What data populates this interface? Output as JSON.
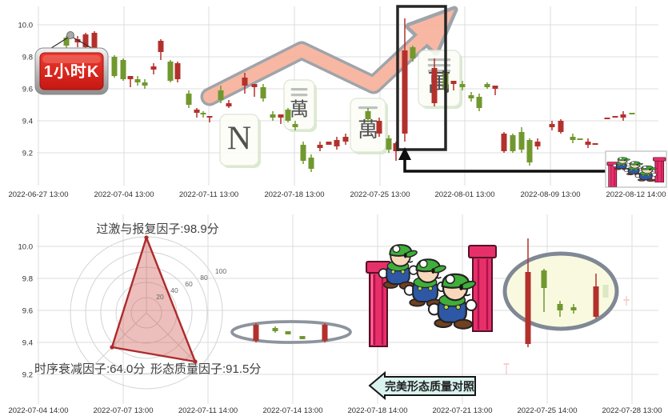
{
  "colors": {
    "candle_red": "#b3312c",
    "candle_green": "#71982e",
    "candle_faint_pink": "#f2b6b6",
    "candle_faint_green": "#bcd9a9",
    "grid": "#dcdcdc",
    "radar_stroke": "#ad2b2b",
    "radar_fill": "rgba(205,85,80,0.38)",
    "arrow_fill": "#f7b49e",
    "arrow_stroke": "#9aa0a6",
    "sign_red": "#d92020",
    "banner_fill": "#d9f3ee",
    "ellipse_large_fill": "#f9f9e0",
    "ellipse_stroke": "#7f8894",
    "box_stroke": "#262626",
    "tile_pink": "#e9a7ae",
    "tile_red": "#c2454e"
  },
  "chart_data": [
    {
      "type": "candlestick",
      "title": "1小时K",
      "y_axis": {
        "ticks": [
          "10.0",
          "9.8",
          "9.6",
          "9.4",
          "9.2"
        ],
        "range": [
          9.0,
          10.1
        ],
        "grid": true
      },
      "x_axis": {
        "ticks": [
          "2022-06-27 13:00",
          "2022-07-04 13:00",
          "2022-07-11 13:00",
          "2022-07-18 13:00",
          "2022-07-25 13:00",
          "2022-08-01 13:00",
          "2022-08-09 13:00",
          "2022-08-12 14:00"
        ]
      },
      "candles": [
        [
          83,
          "g",
          9.92,
          9.87,
          9.93,
          9.85
        ],
        [
          97,
          "r",
          9.91,
          9.89,
          9.93,
          9.86
        ],
        [
          107,
          "r",
          9.94,
          9.86,
          9.95,
          9.8
        ],
        [
          118,
          "r",
          9.95,
          9.83,
          9.96,
          9.81
        ],
        [
          143,
          "g",
          9.8,
          9.68,
          9.81,
          9.67
        ],
        [
          154,
          "g",
          9.78,
          9.66,
          9.79,
          9.65
        ],
        [
          163,
          "r",
          9.68,
          9.66,
          9.68,
          9.61
        ],
        [
          172,
          "g",
          9.66,
          9.64,
          9.68,
          9.62
        ],
        [
          181,
          "g",
          9.64,
          9.62,
          9.66,
          9.6
        ],
        [
          192,
          "r",
          9.74,
          9.72,
          9.76,
          9.69
        ],
        [
          201,
          "r",
          9.9,
          9.83,
          9.91,
          9.78
        ],
        [
          213,
          "g",
          9.77,
          9.65,
          9.78,
          9.64
        ],
        [
          222,
          "r",
          9.76,
          9.66,
          9.77,
          9.64
        ],
        [
          236,
          "g",
          9.57,
          9.5,
          9.59,
          9.48
        ],
        [
          246,
          "r",
          9.47,
          9.45,
          9.48,
          9.42
        ],
        [
          254,
          "g",
          9.45,
          9.44,
          9.46,
          9.42
        ],
        [
          262,
          "r",
          9.43,
          9.42,
          9.43,
          9.39
        ],
        [
          276,
          "g",
          9.59,
          9.53,
          9.62,
          9.51
        ],
        [
          286,
          "r",
          9.51,
          9.49,
          9.53,
          9.48
        ],
        [
          306,
          "r",
          9.67,
          9.62,
          9.7,
          9.57
        ],
        [
          318,
          "r",
          9.63,
          9.61,
          9.63,
          9.55
        ],
        [
          329,
          "g",
          9.61,
          9.54,
          9.63,
          9.52
        ],
        [
          341,
          "g",
          9.44,
          9.42,
          9.46,
          9.4
        ],
        [
          351,
          "r",
          9.44,
          9.42,
          9.44,
          9.38
        ],
        [
          360,
          "g",
          9.47,
          9.4,
          9.48,
          9.39
        ],
        [
          369,
          "g",
          9.38,
          9.36,
          9.4,
          9.34
        ],
        [
          379,
          "g",
          9.25,
          9.15,
          9.27,
          9.13
        ],
        [
          389,
          "g",
          9.17,
          9.1,
          9.19,
          9.08
        ],
        [
          400,
          "r",
          9.25,
          9.23,
          9.27,
          9.21
        ],
        [
          411,
          "r",
          9.27,
          9.25,
          9.27,
          9.25
        ],
        [
          421,
          "r",
          9.28,
          9.24,
          9.3,
          9.22
        ],
        [
          432,
          "r",
          9.3,
          9.27,
          9.32,
          9.25
        ],
        [
          460,
          "g",
          9.46,
          9.41,
          9.48,
          9.39
        ],
        [
          474,
          "r",
          9.4,
          9.32,
          9.42,
          9.3
        ],
        [
          486,
          "g",
          9.29,
          9.22,
          9.31,
          9.2
        ],
        [
          495,
          "r",
          9.26,
          9.21,
          9.27,
          9.15
        ],
        [
          506,
          "r",
          9.84,
          9.32,
          10.04,
          9.27
        ],
        [
          516,
          "g",
          9.86,
          9.79,
          9.87,
          9.77
        ],
        [
          543,
          "r",
          9.73,
          9.51,
          9.79,
          9.49
        ],
        [
          557,
          "g",
          9.7,
          9.6,
          9.72,
          9.58
        ],
        [
          567,
          "r",
          9.65,
          9.63,
          9.65,
          9.59
        ],
        [
          578,
          "g",
          9.63,
          9.61,
          9.65,
          9.59
        ],
        [
          589,
          "g",
          9.56,
          9.54,
          9.58,
          9.52
        ],
        [
          599,
          "g",
          9.55,
          9.48,
          9.57,
          9.46
        ],
        [
          609,
          "g",
          9.63,
          9.61,
          9.64,
          9.6
        ],
        [
          619,
          "r",
          9.62,
          9.6,
          9.62,
          9.56
        ],
        [
          630,
          "r",
          9.32,
          9.21,
          9.33,
          9.2
        ],
        [
          641,
          "g",
          9.31,
          9.21,
          9.32,
          9.2
        ],
        [
          652,
          "g",
          9.33,
          9.22,
          9.36,
          9.2
        ],
        [
          662,
          "g",
          9.28,
          9.14,
          9.29,
          9.12
        ],
        [
          672,
          "r",
          9.27,
          9.24,
          9.29,
          9.22
        ],
        [
          690,
          "r",
          9.38,
          9.36,
          9.4,
          9.34
        ],
        [
          701,
          "r",
          9.4,
          9.33,
          9.41,
          9.32
        ],
        [
          716,
          "g",
          9.3,
          9.28,
          9.32,
          9.26
        ],
        [
          725,
          "g",
          9.29,
          9.28,
          9.29,
          9.28
        ],
        [
          735,
          "r",
          9.27,
          9.25,
          9.29,
          9.23
        ],
        [
          744,
          "r",
          9.26,
          9.25,
          9.26,
          9.25
        ],
        [
          759,
          "r",
          9.42,
          9.41,
          9.42,
          9.41
        ],
        [
          769,
          "r",
          9.43,
          9.42,
          9.43,
          9.42
        ],
        [
          779,
          "r",
          9.44,
          9.42,
          9.46,
          9.4
        ],
        [
          790,
          "g",
          9.45,
          9.44,
          9.45,
          9.44
        ]
      ],
      "annotations": {
        "sign_label": "1小时K",
        "mahjong_tiles": [
          {
            "glyph": "N",
            "strokes": 0,
            "color": "pink"
          },
          {
            "glyph": "萬",
            "strokes": 2,
            "color": "pink"
          },
          {
            "glyph": "萬",
            "strokes": 1,
            "color": "pink"
          },
          {
            "glyph": "萬",
            "strokes": 3,
            "color": "red"
          }
        ],
        "trend_arrow": "zigzag-up-arrow",
        "highlight_box": "tall-red-candle-box",
        "connector": "up-arrow-elbow-from-cartoon",
        "mini_cartoon": "luigi-and-pipes"
      }
    },
    {
      "type": "candlestick+radar",
      "y_axis": {
        "ticks": [
          "10.0",
          "9.8",
          "9.6",
          "9.4",
          "9.2"
        ],
        "grid": true
      },
      "x_axis": {
        "ticks": [
          "2022-07-04 14:00",
          "2022-07-07 13:00",
          "2022-07-11 14:00",
          "2022-07-14 13:00",
          "2022-07-18 14:00",
          "2022-07-21 13:00",
          "2022-07-25 14:00",
          "2022-07-28 13:00"
        ]
      },
      "radar": {
        "axes": [
          {
            "label": "过激与报复因子",
            "score": 98.9
          },
          {
            "label": "时序衰减因子",
            "score": 64.0
          },
          {
            "label": "形态质量因子",
            "score": 91.5
          }
        ],
        "r_ticks": [
          "20",
          "40",
          "60",
          "80",
          "100"
        ],
        "unit": "分"
      },
      "factor_labels": {
        "top": "过激与报复因子:98.9分",
        "bottom_left": "时序衰减因子:64.0分",
        "bottom_right": "形态质量因子:91.5分"
      },
      "candles": [
        [
          320,
          "r",
          9.51,
          9.41,
          9.52,
          9.4
        ],
        [
          344,
          "g",
          9.49,
          9.47,
          9.5,
          9.46
        ],
        [
          360,
          "g",
          9.47,
          9.45,
          9.47,
          9.45
        ],
        [
          378,
          "g",
          9.44,
          9.42,
          9.44,
          9.42
        ],
        [
          406,
          "r",
          9.51,
          9.41,
          9.52,
          9.4
        ],
        [
          660,
          "r",
          9.84,
          9.39,
          10.05,
          9.37
        ],
        [
          680,
          "g",
          9.85,
          9.74,
          9.86,
          9.59
        ],
        [
          700,
          "g",
          9.64,
          9.6,
          9.66,
          9.56
        ],
        [
          717,
          "g",
          9.62,
          9.6,
          9.64,
          9.58
        ],
        [
          745,
          "r",
          9.75,
          9.56,
          9.83,
          9.55
        ],
        [
          757,
          "gf",
          9.76,
          9.68,
          9.76,
          9.68
        ],
        [
          633,
          "p",
          9.27,
          9.26,
          9.27,
          9.2
        ],
        [
          783,
          "p",
          9.67,
          9.66,
          9.69,
          9.63
        ]
      ],
      "annotations": {
        "ellipse_small": "flat-pattern-ellipse",
        "ellipse_large": "target-pattern-ellipse",
        "banner": "完美形态质量对照",
        "cartoon": "luigi-trio-with-pipes"
      }
    }
  ]
}
